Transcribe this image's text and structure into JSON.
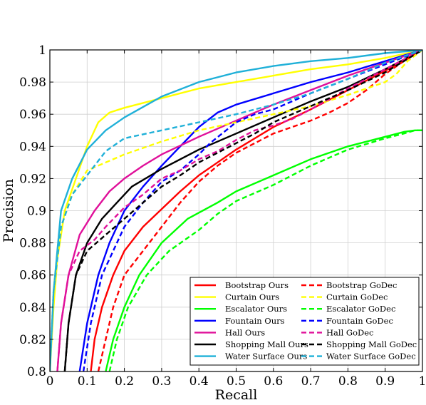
{
  "chart_data": {
    "type": "line",
    "title": "",
    "xlabel": "Recall",
    "ylabel": "Precision",
    "xlim": [
      0,
      1
    ],
    "ylim": [
      0.8,
      1
    ],
    "x_ticks": [
      "0",
      "0.1",
      "0.2",
      "0.3",
      "0.4",
      "0.5",
      "0.6",
      "0.7",
      "0.8",
      "0.9",
      "1"
    ],
    "y_ticks": [
      "0.8",
      "0.82",
      "0.84",
      "0.86",
      "0.88",
      "0.9",
      "0.92",
      "0.94",
      "0.96",
      "0.98",
      "1"
    ],
    "grid": true,
    "legend_position": "bottom-right",
    "series": [
      {
        "name": "Bootstrap Ours",
        "color": "#ff0000",
        "dash": "solid",
        "points": [
          [
            0.11,
            0.8
          ],
          [
            0.12,
            0.82
          ],
          [
            0.14,
            0.84
          ],
          [
            0.17,
            0.86
          ],
          [
            0.2,
            0.875
          ],
          [
            0.25,
            0.89
          ],
          [
            0.3,
            0.901
          ],
          [
            0.35,
            0.912
          ],
          [
            0.4,
            0.922
          ],
          [
            0.45,
            0.93
          ],
          [
            0.5,
            0.938
          ],
          [
            0.55,
            0.945
          ],
          [
            0.6,
            0.952
          ],
          [
            0.7,
            0.963
          ],
          [
            0.8,
            0.975
          ],
          [
            0.9,
            0.987
          ],
          [
            1.0,
            1.0
          ]
        ]
      },
      {
        "name": "Curtain Ours",
        "color": "#ffff00",
        "dash": "solid",
        "points": [
          [
            0.0,
            0.8
          ],
          [
            0.01,
            0.84
          ],
          [
            0.02,
            0.87
          ],
          [
            0.04,
            0.9
          ],
          [
            0.07,
            0.92
          ],
          [
            0.1,
            0.94
          ],
          [
            0.13,
            0.955
          ],
          [
            0.16,
            0.961
          ],
          [
            0.2,
            0.964
          ],
          [
            0.3,
            0.97
          ],
          [
            0.4,
            0.976
          ],
          [
            0.5,
            0.98
          ],
          [
            0.6,
            0.984
          ],
          [
            0.7,
            0.988
          ],
          [
            0.8,
            0.991
          ],
          [
            0.9,
            0.995
          ],
          [
            1.0,
            1.0
          ]
        ]
      },
      {
        "name": "Escalator Ours",
        "color": "#00ff00",
        "dash": "solid",
        "points": [
          [
            0.15,
            0.8
          ],
          [
            0.17,
            0.82
          ],
          [
            0.2,
            0.84
          ],
          [
            0.24,
            0.86
          ],
          [
            0.3,
            0.88
          ],
          [
            0.37,
            0.895
          ],
          [
            0.45,
            0.905
          ],
          [
            0.5,
            0.912
          ],
          [
            0.6,
            0.922
          ],
          [
            0.7,
            0.932
          ],
          [
            0.8,
            0.94
          ],
          [
            0.9,
            0.946
          ],
          [
            0.95,
            0.949
          ],
          [
            0.98,
            0.95
          ],
          [
            1.0,
            0.95
          ]
        ]
      },
      {
        "name": "Fountain Ours",
        "color": "#0000ff",
        "dash": "solid",
        "points": [
          [
            0.08,
            0.8
          ],
          [
            0.1,
            0.83
          ],
          [
            0.13,
            0.86
          ],
          [
            0.16,
            0.88
          ],
          [
            0.2,
            0.9
          ],
          [
            0.25,
            0.915
          ],
          [
            0.3,
            0.928
          ],
          [
            0.35,
            0.94
          ],
          [
            0.4,
            0.952
          ],
          [
            0.45,
            0.961
          ],
          [
            0.5,
            0.966
          ],
          [
            0.6,
            0.973
          ],
          [
            0.7,
            0.98
          ],
          [
            0.8,
            0.986
          ],
          [
            0.9,
            0.993
          ],
          [
            1.0,
            1.0
          ]
        ]
      },
      {
        "name": "Hall Ours",
        "color": "#e0109a",
        "dash": "solid",
        "points": [
          [
            0.02,
            0.8
          ],
          [
            0.03,
            0.83
          ],
          [
            0.05,
            0.86
          ],
          [
            0.08,
            0.885
          ],
          [
            0.12,
            0.9
          ],
          [
            0.16,
            0.912
          ],
          [
            0.2,
            0.92
          ],
          [
            0.25,
            0.928
          ],
          [
            0.3,
            0.935
          ],
          [
            0.4,
            0.946
          ],
          [
            0.5,
            0.956
          ],
          [
            0.6,
            0.966
          ],
          [
            0.7,
            0.975
          ],
          [
            0.8,
            0.984
          ],
          [
            0.9,
            0.992
          ],
          [
            1.0,
            1.0
          ]
        ]
      },
      {
        "name": "Shopping Mall Ours",
        "color": "#000000",
        "dash": "solid",
        "points": [
          [
            0.04,
            0.8
          ],
          [
            0.05,
            0.83
          ],
          [
            0.07,
            0.86
          ],
          [
            0.1,
            0.88
          ],
          [
            0.14,
            0.895
          ],
          [
            0.18,
            0.905
          ],
          [
            0.22,
            0.915
          ],
          [
            0.3,
            0.926
          ],
          [
            0.4,
            0.938
          ],
          [
            0.5,
            0.948
          ],
          [
            0.6,
            0.958
          ],
          [
            0.7,
            0.968
          ],
          [
            0.8,
            0.977
          ],
          [
            0.9,
            0.988
          ],
          [
            1.0,
            1.0
          ]
        ]
      },
      {
        "name": "Water Surface Ours",
        "color": "#1fb0d8",
        "dash": "solid",
        "points": [
          [
            0.0,
            0.8
          ],
          [
            0.01,
            0.85
          ],
          [
            0.03,
            0.9
          ],
          [
            0.06,
            0.92
          ],
          [
            0.1,
            0.938
          ],
          [
            0.15,
            0.95
          ],
          [
            0.2,
            0.958
          ],
          [
            0.3,
            0.971
          ],
          [
            0.4,
            0.98
          ],
          [
            0.5,
            0.986
          ],
          [
            0.6,
            0.99
          ],
          [
            0.7,
            0.993
          ],
          [
            0.8,
            0.995
          ],
          [
            0.9,
            0.998
          ],
          [
            1.0,
            1.0
          ]
        ]
      },
      {
        "name": "Bootstrap GoDec",
        "color": "#ff0000",
        "dash": "dashed",
        "points": [
          [
            0.13,
            0.8
          ],
          [
            0.15,
            0.82
          ],
          [
            0.17,
            0.84
          ],
          [
            0.2,
            0.86
          ],
          [
            0.25,
            0.875
          ],
          [
            0.3,
            0.89
          ],
          [
            0.35,
            0.905
          ],
          [
            0.4,
            0.918
          ],
          [
            0.45,
            0.928
          ],
          [
            0.5,
            0.936
          ],
          [
            0.55,
            0.942
          ],
          [
            0.6,
            0.948
          ],
          [
            0.65,
            0.952
          ],
          [
            0.7,
            0.956
          ],
          [
            0.75,
            0.961
          ],
          [
            0.8,
            0.967
          ],
          [
            0.85,
            0.975
          ],
          [
            0.9,
            0.985
          ],
          [
            0.95,
            0.993
          ],
          [
            1.0,
            1.0
          ]
        ]
      },
      {
        "name": "Curtain GoDec",
        "color": "#ffff00",
        "dash": "dashed",
        "points": [
          [
            0.0,
            0.8
          ],
          [
            0.01,
            0.85
          ],
          [
            0.03,
            0.89
          ],
          [
            0.06,
            0.91
          ],
          [
            0.1,
            0.925
          ],
          [
            0.15,
            0.93
          ],
          [
            0.2,
            0.935
          ],
          [
            0.3,
            0.943
          ],
          [
            0.4,
            0.95
          ],
          [
            0.5,
            0.955
          ],
          [
            0.6,
            0.96
          ],
          [
            0.7,
            0.965
          ],
          [
            0.8,
            0.972
          ],
          [
            0.9,
            0.98
          ],
          [
            0.93,
            0.985
          ],
          [
            0.96,
            0.993
          ],
          [
            1.0,
            1.0
          ]
        ]
      },
      {
        "name": "Escalator GoDec",
        "color": "#00ff00",
        "dash": "dashed",
        "points": [
          [
            0.16,
            0.8
          ],
          [
            0.18,
            0.82
          ],
          [
            0.21,
            0.84
          ],
          [
            0.26,
            0.86
          ],
          [
            0.32,
            0.875
          ],
          [
            0.4,
            0.888
          ],
          [
            0.45,
            0.898
          ],
          [
            0.5,
            0.906
          ],
          [
            0.6,
            0.916
          ],
          [
            0.7,
            0.928
          ],
          [
            0.8,
            0.938
          ],
          [
            0.9,
            0.945
          ],
          [
            0.95,
            0.948
          ],
          [
            0.98,
            0.95
          ],
          [
            1.0,
            0.95
          ]
        ]
      },
      {
        "name": "Fountain GoDec",
        "color": "#0000ff",
        "dash": "dashed",
        "points": [
          [
            0.09,
            0.8
          ],
          [
            0.11,
            0.83
          ],
          [
            0.14,
            0.86
          ],
          [
            0.17,
            0.875
          ],
          [
            0.2,
            0.89
          ],
          [
            0.25,
            0.905
          ],
          [
            0.3,
            0.918
          ],
          [
            0.35,
            0.925
          ],
          [
            0.4,
            0.935
          ],
          [
            0.43,
            0.942
          ],
          [
            0.5,
            0.955
          ],
          [
            0.55,
            0.96
          ],
          [
            0.6,
            0.963
          ],
          [
            0.7,
            0.973
          ],
          [
            0.8,
            0.982
          ],
          [
            0.9,
            0.991
          ],
          [
            1.0,
            1.0
          ]
        ]
      },
      {
        "name": "Hall GoDec",
        "color": "#e0109a",
        "dash": "dashed",
        "points": [
          [
            0.02,
            0.8
          ],
          [
            0.03,
            0.83
          ],
          [
            0.05,
            0.86
          ],
          [
            0.08,
            0.875
          ],
          [
            0.12,
            0.882
          ],
          [
            0.15,
            0.89
          ],
          [
            0.2,
            0.902
          ],
          [
            0.25,
            0.91
          ],
          [
            0.3,
            0.92
          ],
          [
            0.35,
            0.925
          ],
          [
            0.4,
            0.932
          ],
          [
            0.45,
            0.937
          ],
          [
            0.5,
            0.944
          ],
          [
            0.55,
            0.95
          ],
          [
            0.6,
            0.953
          ],
          [
            0.65,
            0.957
          ],
          [
            0.7,
            0.963
          ],
          [
            0.8,
            0.976
          ],
          [
            0.9,
            0.988
          ],
          [
            1.0,
            1.0
          ]
        ]
      },
      {
        "name": "Shopping Mall GoDec",
        "color": "#000000",
        "dash": "dashed",
        "points": [
          [
            0.04,
            0.8
          ],
          [
            0.05,
            0.83
          ],
          [
            0.07,
            0.86
          ],
          [
            0.1,
            0.875
          ],
          [
            0.15,
            0.885
          ],
          [
            0.2,
            0.895
          ],
          [
            0.25,
            0.905
          ],
          [
            0.3,
            0.915
          ],
          [
            0.35,
            0.922
          ],
          [
            0.4,
            0.93
          ],
          [
            0.45,
            0.936
          ],
          [
            0.5,
            0.942
          ],
          [
            0.55,
            0.948
          ],
          [
            0.6,
            0.955
          ],
          [
            0.65,
            0.96
          ],
          [
            0.7,
            0.965
          ],
          [
            0.8,
            0.975
          ],
          [
            0.9,
            0.986
          ],
          [
            1.0,
            1.0
          ]
        ]
      },
      {
        "name": "Water Surface GoDec",
        "color": "#1fb0d8",
        "dash": "dashed",
        "points": [
          [
            0.0,
            0.8
          ],
          [
            0.01,
            0.85
          ],
          [
            0.03,
            0.89
          ],
          [
            0.06,
            0.91
          ],
          [
            0.1,
            0.922
          ],
          [
            0.15,
            0.937
          ],
          [
            0.2,
            0.945
          ],
          [
            0.3,
            0.95
          ],
          [
            0.4,
            0.955
          ],
          [
            0.5,
            0.96
          ],
          [
            0.6,
            0.966
          ],
          [
            0.7,
            0.973
          ],
          [
            0.8,
            0.982
          ],
          [
            0.9,
            0.992
          ],
          [
            1.0,
            1.0
          ]
        ]
      }
    ]
  }
}
